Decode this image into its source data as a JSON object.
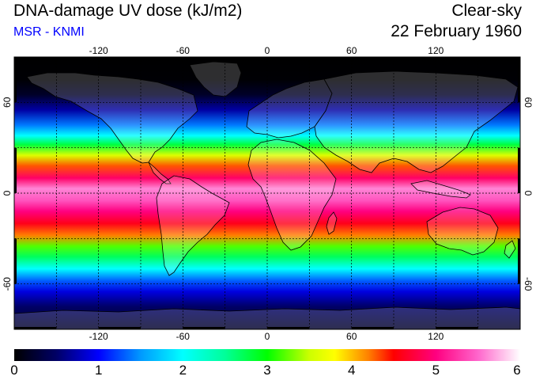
{
  "header": {
    "title": "DNA-damage UV dose (kJ/m2)",
    "source": "MSR - KNMI",
    "sky_condition": "Clear-sky",
    "date": "22 February 1960"
  },
  "map": {
    "projection": "equirectangular",
    "lon_range": [
      -180,
      180
    ],
    "lat_range": [
      -90,
      90
    ],
    "grid_lon_step": 30,
    "grid_lat_step": 30,
    "grid_style": "dashed",
    "lon_tick_labels": [
      "-120",
      "-60",
      "0",
      "60",
      "120"
    ],
    "lon_tick_values": [
      -120,
      -60,
      0,
      60,
      120
    ],
    "lat_tick_labels": [
      "60",
      "0",
      "-60"
    ],
    "lat_tick_values": [
      60,
      0,
      -60
    ],
    "uv_profile": [
      {
        "lat": 90,
        "dose": 0.0
      },
      {
        "lat": 75,
        "dose": 0.02
      },
      {
        "lat": 65,
        "dose": 0.2
      },
      {
        "lat": 55,
        "dose": 0.7
      },
      {
        "lat": 45,
        "dose": 1.4
      },
      {
        "lat": 38,
        "dose": 2.0
      },
      {
        "lat": 32,
        "dose": 2.8
      },
      {
        "lat": 25,
        "dose": 3.6
      },
      {
        "lat": 18,
        "dose": 4.3
      },
      {
        "lat": 10,
        "dose": 4.9
      },
      {
        "lat": 3,
        "dose": 5.6
      },
      {
        "lat": -5,
        "dose": 5.4
      },
      {
        "lat": -12,
        "dose": 5.0
      },
      {
        "lat": -20,
        "dose": 4.6
      },
      {
        "lat": -28,
        "dose": 4.2
      },
      {
        "lat": -35,
        "dose": 3.2
      },
      {
        "lat": -42,
        "dose": 2.7
      },
      {
        "lat": -50,
        "dose": 2.0
      },
      {
        "lat": -58,
        "dose": 1.3
      },
      {
        "lat": -65,
        "dose": 0.9
      },
      {
        "lat": -75,
        "dose": 0.5
      },
      {
        "lat": -90,
        "dose": 0.2
      }
    ]
  },
  "colorbar": {
    "min": 0,
    "max": 6,
    "labels": [
      "0",
      "1",
      "2",
      "3",
      "4",
      "5",
      "6"
    ],
    "stops": [
      {
        "value": 0.0,
        "color": "#000000"
      },
      {
        "value": 0.5,
        "color": "#000066"
      },
      {
        "value": 1.0,
        "color": "#0000ff"
      },
      {
        "value": 1.5,
        "color": "#0099ff"
      },
      {
        "value": 2.0,
        "color": "#00ffff"
      },
      {
        "value": 2.5,
        "color": "#00ff99"
      },
      {
        "value": 3.0,
        "color": "#00ff00"
      },
      {
        "value": 3.5,
        "color": "#ccff00"
      },
      {
        "value": 3.8,
        "color": "#ffff00"
      },
      {
        "value": 4.2,
        "color": "#ff8000"
      },
      {
        "value": 4.5,
        "color": "#ff0000"
      },
      {
        "value": 5.0,
        "color": "#ff0080"
      },
      {
        "value": 5.5,
        "color": "#ff66cc"
      },
      {
        "value": 6.0,
        "color": "#ffffff"
      }
    ]
  }
}
